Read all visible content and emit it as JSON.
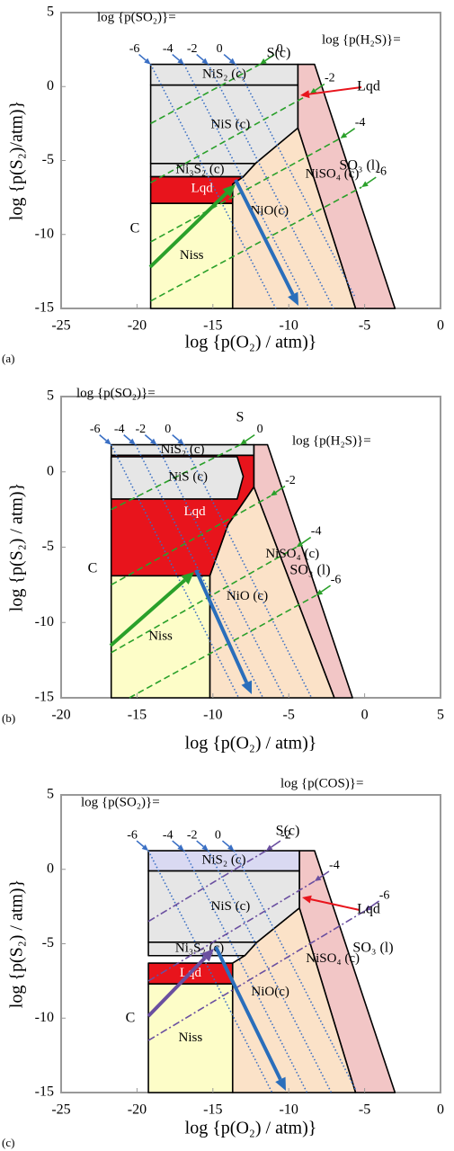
{
  "chart_data": [
    {
      "type": "area",
      "panel_label": "(a)",
      "xlabel": "log {p(O₂) / atm)}",
      "ylabel": "log {p(S₂)/atm)}",
      "xlim": [
        -25,
        0
      ],
      "ylim": [
        -15,
        5
      ],
      "xticks": [
        -25,
        -20,
        -15,
        -10,
        -5,
        0
      ],
      "yticks": [
        -15,
        -10,
        -5,
        0,
        5
      ],
      "regions": [
        {
          "name": "NiSO₄ (c)",
          "color": "#f2c6c6",
          "points": [
            [
              -9.4,
              1.5
            ],
            [
              -8.3,
              1.5
            ],
            [
              -3.0,
              -15
            ],
            [
              -5.6,
              -15
            ],
            [
              -9.4,
              -2.8
            ]
          ]
        },
        {
          "name": "NiO(c)",
          "color": "#fbe2c8",
          "points": [
            [
              -13.7,
              -15
            ],
            [
              -5.6,
              -15
            ],
            [
              -9.4,
              -2.8
            ],
            [
              -12.2,
              -5.2
            ],
            [
              -13.0,
              -6.1
            ],
            [
              -13.7,
              -6.6
            ]
          ]
        },
        {
          "name": "NiS (c)",
          "color": "#e6e6e6",
          "points": [
            [
              -19.1,
              0.1
            ],
            [
              -9.4,
              0.1
            ],
            [
              -9.4,
              -2.8
            ],
            [
              -12.2,
              -5.2
            ],
            [
              -19.1,
              -5.2
            ]
          ]
        },
        {
          "name": "NiS₂ (c)",
          "color": "#e6e6e6",
          "points": [
            [
              -19.1,
              1.5
            ],
            [
              -9.4,
              1.5
            ],
            [
              -9.4,
              0.1
            ],
            [
              -19.1,
              0.1
            ]
          ]
        },
        {
          "name": "Ni₃S₂ (c)",
          "color": "#e6e6e6",
          "points": [
            [
              -19.1,
              -5.2
            ],
            [
              -12.2,
              -5.2
            ],
            [
              -13.0,
              -6.1
            ],
            [
              -19.1,
              -6.1
            ]
          ]
        },
        {
          "name": "Lqd",
          "color": "#e8141c",
          "points": [
            [
              -19.1,
              -6.1
            ],
            [
              -13.0,
              -6.1
            ],
            [
              -13.7,
              -6.6
            ],
            [
              -13.7,
              -7.9
            ],
            [
              -19.1,
              -7.9
            ]
          ]
        },
        {
          "name": "Niss",
          "color": "#fdfdc8",
          "points": [
            [
              -19.1,
              -7.9
            ],
            [
              -13.7,
              -7.9
            ],
            [
              -13.7,
              -15
            ],
            [
              -19.1,
              -15
            ]
          ]
        }
      ],
      "series": [
        {
          "name": "log {p(SO₂)}=",
          "color": "#3a6fc4",
          "style": "dotted",
          "lines": [
            {
              "label": -6,
              "points": [
                [
                  -19.1,
                  1.5
                ],
                [
                  -10.85,
                  -15
                ]
              ]
            },
            {
              "label": -4,
              "points": [
                [
                  -16.9,
                  1.5
                ],
                [
                  -8.65,
                  -15
                ]
              ]
            },
            {
              "label": -2,
              "points": [
                [
                  -15.3,
                  1.5
                ],
                [
                  -7.05,
                  -15
                ]
              ]
            },
            {
              "label": 0,
              "points": [
                [
                  -13.5,
                  1.5
                ],
                [
                  -5.6,
                  -14.3
                ]
              ]
            }
          ]
        },
        {
          "name": "log {p(H₂S)}=",
          "color": "#2aa02a",
          "style": "dashed",
          "lines": [
            {
              "label": 0,
              "points": [
                [
                  -19.1,
                  -2.5
                ],
                [
                  -11.9,
                  1.5
                ]
              ]
            },
            {
              "label": -2,
              "points": [
                [
                  -19.1,
                  -6.5
                ],
                [
                  -8.6,
                  -0.5
                ]
              ]
            },
            {
              "label": -4,
              "points": [
                [
                  -19.1,
                  -10.5
                ],
                [
                  -6.6,
                  -3.5
                ]
              ]
            },
            {
              "label": -6,
              "points": [
                [
                  -19.1,
                  -14.5
                ],
                [
                  -5.2,
                  -6.8
                ]
              ]
            }
          ]
        }
      ],
      "annotations": [
        "C",
        "S(c)",
        "SO₃ (l)",
        "Lqd"
      ]
    },
    {
      "type": "area",
      "panel_label": "(b)",
      "xlabel": "log {p(O₂) / atm)}",
      "ylabel": "log {p(S₂) / atm)}",
      "xlim": [
        -20,
        5
      ],
      "ylim": [
        -15,
        5
      ],
      "xticks": [
        -20,
        -15,
        -10,
        -5,
        0,
        5
      ],
      "yticks": [
        -15,
        -10,
        -5,
        0,
        5
      ],
      "regions": [
        {
          "name": "NiSO₄ (c)",
          "color": "#f2c6c6",
          "points": [
            [
              -7.3,
              1.8
            ],
            [
              -6.4,
              1.8
            ],
            [
              -0.8,
              -15
            ],
            [
              -2.0,
              -15
            ],
            [
              -7.3,
              -1.0
            ]
          ]
        },
        {
          "name": "NiO (c)",
          "color": "#fbe2c8",
          "points": [
            [
              -10.2,
              -15
            ],
            [
              -2.0,
              -15
            ],
            [
              -7.3,
              -1.0
            ],
            [
              -9.0,
              -3.5
            ],
            [
              -10.2,
              -6.9
            ]
          ]
        },
        {
          "name": "Lqd",
          "color": "#e8141c",
          "points": [
            [
              -16.7,
              1.1
            ],
            [
              -7.3,
              1.1
            ],
            [
              -7.3,
              -1.0
            ],
            [
              -9.0,
              -3.5
            ],
            [
              -10.2,
              -6.9
            ],
            [
              -16.7,
              -6.9
            ]
          ]
        },
        {
          "name": "NiS (c)",
          "color": "#e6e6e6",
          "points": [
            [
              -16.7,
              1.0
            ],
            [
              -8.4,
              1.0
            ],
            [
              -8.0,
              -0.3
            ],
            [
              -8.4,
              -1.8
            ],
            [
              -16.7,
              -1.8
            ]
          ]
        },
        {
          "name": "NiS₂ (c)",
          "color": "#e6e6e6",
          "points": [
            [
              -16.7,
              1.8
            ],
            [
              -7.3,
              1.8
            ],
            [
              -7.3,
              1.1
            ],
            [
              -16.7,
              1.1
            ]
          ]
        },
        {
          "name": "Niss",
          "color": "#fdfdc8",
          "points": [
            [
              -16.7,
              -6.9
            ],
            [
              -10.2,
              -6.9
            ],
            [
              -10.2,
              -15
            ],
            [
              -16.7,
              -15
            ]
          ]
        }
      ],
      "series": [
        {
          "name": "log {p(SO₂)}=",
          "color": "#3a6fc4",
          "style": "dotted",
          "lines": [
            {
              "label": -6,
              "points": [
                [
                  -16.7,
                  1.8
                ],
                [
                  -8.3,
                  -15
                ]
              ]
            },
            {
              "label": -4,
              "points": [
                [
                  -15.1,
                  1.8
                ],
                [
                  -6.7,
                  -15
                ]
              ]
            },
            {
              "label": -2,
              "points": [
                [
                  -13.7,
                  1.8
                ],
                [
                  -5.3,
                  -15
                ]
              ]
            },
            {
              "label": 0,
              "points": [
                [
                  -11.9,
                  1.8
                ],
                [
                  -3.5,
                  -15
                ]
              ]
            }
          ]
        },
        {
          "name": "log {p(H₂S)}=",
          "color": "#2aa02a",
          "style": "dashed",
          "lines": [
            {
              "label": 0,
              "points": [
                [
                  -16.7,
                  -2.5
                ],
                [
                  -8.2,
                  1.8
                ]
              ]
            },
            {
              "label": -2,
              "points": [
                [
                  -16.7,
                  -7.5
                ],
                [
                  -6.2,
                  -1.6
                ]
              ]
            },
            {
              "label": -4,
              "points": [
                [
                  -16.7,
                  -12
                ],
                [
                  -4.5,
                  -5.0
                ]
              ]
            },
            {
              "label": -6,
              "points": [
                [
                  -15.5,
                  -15
                ],
                [
                  -3.2,
                  -8.2
                ]
              ]
            }
          ]
        }
      ],
      "annotations": [
        "C",
        "S",
        "SO₃ (l)"
      ]
    },
    {
      "type": "area",
      "panel_label": "(c)",
      "xlabel": "log {p(O₂) / atm)}",
      "ylabel": "log {p(S₂) / atm)}",
      "xlim": [
        -25,
        0
      ],
      "ylim": [
        -15,
        5
      ],
      "xticks": [
        -25,
        -20,
        -15,
        -10,
        -5,
        0
      ],
      "yticks": [
        -15,
        -10,
        -5,
        0,
        5
      ],
      "regions": [
        {
          "name": "NiSO₄ (c)",
          "color": "#f2c6c6",
          "points": [
            [
              -9.3,
              1.25
            ],
            [
              -8.3,
              1.25
            ],
            [
              -3.0,
              -15
            ],
            [
              -5.6,
              -15
            ],
            [
              -9.3,
              -2.6
            ]
          ]
        },
        {
          "name": "NiO(c)",
          "color": "#fbe2c8",
          "points": [
            [
              -13.7,
              -15
            ],
            [
              -5.6,
              -15
            ],
            [
              -9.3,
              -2.6
            ],
            [
              -12.1,
              -4.9
            ],
            [
              -12.9,
              -5.8
            ],
            [
              -13.7,
              -6.3
            ]
          ]
        },
        {
          "name": "NiS (c)",
          "color": "#e6e6e6",
          "points": [
            [
              -19.25,
              -0.1
            ],
            [
              -9.3,
              -0.1
            ],
            [
              -9.3,
              -2.6
            ],
            [
              -12.1,
              -4.9
            ],
            [
              -19.25,
              -4.9
            ]
          ]
        },
        {
          "name": "NiS₂ (c)",
          "color": "#d9d9f2",
          "points": [
            [
              -19.25,
              1.25
            ],
            [
              -9.3,
              1.25
            ],
            [
              -9.3,
              -0.1
            ],
            [
              -19.25,
              -0.1
            ]
          ]
        },
        {
          "name": "Ni₃S₂ (c)",
          "color": "#e6e6e6",
          "points": [
            [
              -19.25,
              -4.9
            ],
            [
              -12.1,
              -4.9
            ],
            [
              -12.9,
              -5.8
            ],
            [
              -19.25,
              -5.8
            ]
          ]
        },
        {
          "name": "Lqd",
          "color": "#e8141c",
          "points": [
            [
              -19.25,
              -6.3
            ],
            [
              -13.7,
              -6.3
            ],
            [
              -13.7,
              -7.7
            ],
            [
              -19.25,
              -7.7
            ]
          ]
        },
        {
          "name": "Niss",
          "color": "#fdfdc8",
          "points": [
            [
              -19.25,
              -7.7
            ],
            [
              -13.7,
              -7.7
            ],
            [
              -13.7,
              -15
            ],
            [
              -19.25,
              -15
            ]
          ]
        }
      ],
      "series": [
        {
          "name": "log {p(SO₂)}=",
          "color": "#3a6fc4",
          "style": "dotted",
          "lines": [
            {
              "label": -6,
              "points": [
                [
                  -19.25,
                  1.25
                ],
                [
                  -11.1,
                  -15
                ]
              ]
            },
            {
              "label": -4,
              "points": [
                [
                  -16.9,
                  1.25
                ],
                [
                  -8.8,
                  -15
                ]
              ]
            },
            {
              "label": -2,
              "points": [
                [
                  -15.3,
                  1.25
                ],
                [
                  -7.2,
                  -15
                ]
              ]
            },
            {
              "label": 0,
              "points": [
                [
                  -13.6,
                  1.25
                ],
                [
                  -5.6,
                  -14.8
                ]
              ]
            }
          ]
        },
        {
          "name": "log {p(COS)}=",
          "color": "#6a4fa0",
          "style": "dash-dot",
          "lines": [
            {
              "label": -2,
              "points": [
                [
                  -19.25,
                  -3.5
                ],
                [
                  -11.5,
                  1.25
                ]
              ]
            },
            {
              "label": -4,
              "points": [
                [
                  -19.25,
                  -7.5
                ],
                [
                  -8.3,
                  -0.8
                ]
              ]
            },
            {
              "label": -6,
              "points": [
                [
                  -19.25,
                  -11.5
                ],
                [
                  -5.0,
                  -2.8
                ]
              ]
            }
          ]
        }
      ],
      "annotations": [
        "C",
        "S(c)",
        "SO₃ (l)",
        "Lqd"
      ]
    }
  ]
}
